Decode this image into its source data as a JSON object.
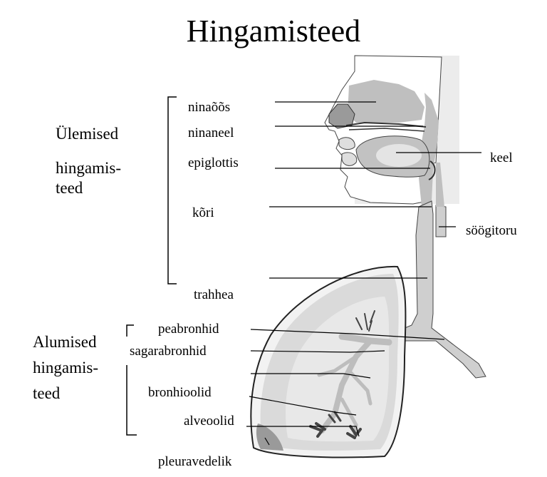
{
  "title": "Hingamisteed",
  "groups": {
    "upper": [
      "Ülemised",
      "hingamis-",
      "teed"
    ],
    "lower": [
      "Alumised",
      "hingamis-",
      "teed"
    ]
  },
  "labels": {
    "ninaoos": "ninaõõs",
    "ninaneel": "ninaneel",
    "epiglottis": "epiglottis",
    "kori": "kõri",
    "trahhea": "trahhea",
    "keel": "keel",
    "soogitoru": "söögitoru",
    "peabronhid": "peabronhid",
    "sagarabronhid": "sagarabronhid",
    "bronhioolid": "bronhioolid",
    "alveoolid": "alveoolid",
    "pleuravedelik": "pleuravedelik"
  },
  "colors": {
    "background_panel": "#ececec",
    "airway": "#cfcfcf",
    "airway_dark": "#a9a9a9",
    "lung_light": "#e6e6e6",
    "outline": "#000000"
  }
}
